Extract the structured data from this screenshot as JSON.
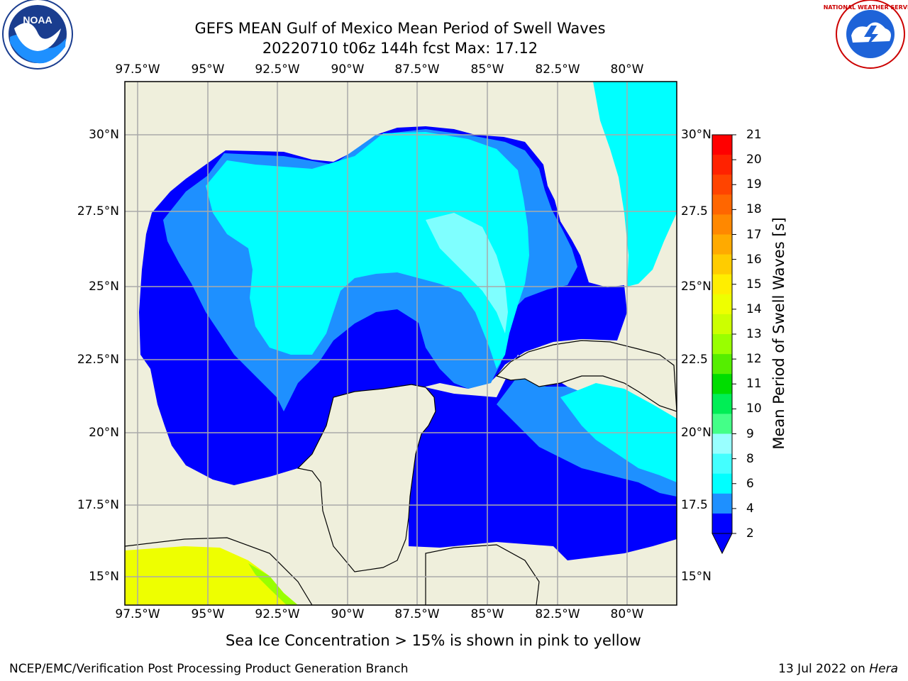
{
  "header": {
    "title_line1": "GEFS MEAN Gulf of Mexico Mean Period of Swell Waves",
    "title_line2": "20220710 t06z 144h fcst   Max: 17.12"
  },
  "logos": {
    "left": {
      "name": "noaa-logo",
      "text": "NOAA"
    },
    "right": {
      "name": "national-weather-service-logo",
      "text": "NATIONAL WEATHER SERVICE"
    }
  },
  "map": {
    "lon_ticks": [
      "97.5°W",
      "95°W",
      "92.5°W",
      "90°W",
      "87.5°W",
      "85°W",
      "82.5°W",
      "80°W"
    ],
    "lat_ticks_left": [
      "30°N",
      "27.5°N",
      "25°N",
      "22.5°N",
      "20°N",
      "17.5°N",
      "15°N"
    ],
    "lat_ticks_right": [
      "30°N",
      "27.5",
      "25°N",
      "22.5",
      "20°N",
      "17.5",
      "15°N"
    ],
    "lon_range": [
      -98,
      -79
    ],
    "lat_range": [
      14,
      32
    ],
    "colors": {
      "land": "#efefdc",
      "swell_2_4": "#0000ff",
      "swell_4_6": "#1e90ff",
      "swell_6_8": "#00ffff",
      "swell_8_9": "#7fffff",
      "ice": "#ffff00",
      "grid": "#aaaaaa"
    }
  },
  "colorbar": {
    "title": "Mean Period of Swell Waves [s]",
    "labels": [
      "21",
      "20",
      "19",
      "18",
      "17",
      "16",
      "15",
      "14",
      "13",
      "12",
      "11",
      "10",
      "9",
      "8",
      "6",
      "4",
      "2"
    ],
    "colors": [
      "#ff0000",
      "#ff2200",
      "#ff4400",
      "#ff6600",
      "#ff8800",
      "#ffaa00",
      "#ffcc00",
      "#ffee00",
      "#eeff00",
      "#ccff00",
      "#99ff00",
      "#55ee00",
      "#00dd00",
      "#00ee55",
      "#44ff88",
      "#99ffff",
      "#44ffff",
      "#00ffff",
      "#1e90ff",
      "#0000ff"
    ],
    "extend_color": "#0000ff"
  },
  "notes": {
    "sea_ice": "Sea Ice Concentration > 15% is shown in pink to yellow"
  },
  "footer": {
    "left": "NCEP/EMC/Verification Post Processing Product Generation Branch",
    "right_prefix": "13 Jul 2022 on ",
    "right_host": "Hera"
  }
}
